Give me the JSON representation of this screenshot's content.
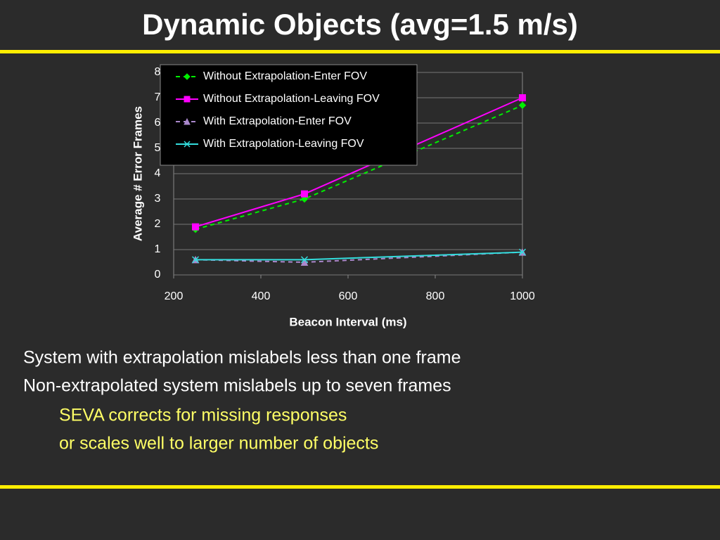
{
  "title": "Dynamic Objects (avg=1.5 m/s)",
  "chart_data": {
    "type": "line",
    "x_label": "Beacon Interval (ms)",
    "y_label": "Average # Error Frames",
    "x": [
      250,
      500,
      1000
    ],
    "series": [
      {
        "name": "Without Extrapolation-Enter FOV",
        "color": "#00ee00",
        "marker": "diamond",
        "dashed": true,
        "values": [
          1.8,
          3.0,
          6.7
        ]
      },
      {
        "name": "Without Extrapolation-Leaving FOV",
        "color": "#ff00ff",
        "marker": "square",
        "dashed": false,
        "values": [
          1.9,
          3.2,
          7.0
        ]
      },
      {
        "name": "With Extrapolation-Enter FOV",
        "color": "#aa88cc",
        "marker": "triangle",
        "dashed": true,
        "values": [
          0.6,
          0.5,
          0.9
        ]
      },
      {
        "name": "With Extrapolation-Leaving FOV",
        "color": "#33dddd",
        "marker": "x",
        "dashed": false,
        "values": [
          0.6,
          0.6,
          0.9
        ]
      }
    ],
    "xlim": [
      200,
      1000
    ],
    "xticks": [
      200,
      400,
      600,
      800,
      1000
    ],
    "ylim": [
      0,
      8
    ],
    "yticks": [
      0,
      1,
      2,
      3,
      4,
      5,
      6,
      7,
      8
    ],
    "grid": true,
    "legend": "top-left"
  },
  "points": [
    "System with extrapolation mislabels less than one frame",
    "Non-extrapolated system mislabels up to seven frames"
  ],
  "subpoints": [
    "SEVA corrects for missing responses",
    "or scales well to larger number of objects"
  ]
}
